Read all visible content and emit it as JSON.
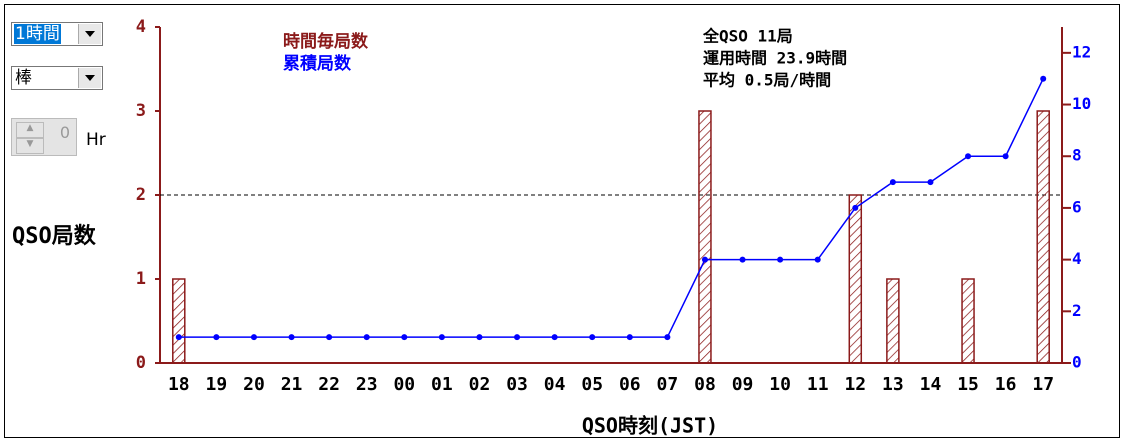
{
  "controls": {
    "interval": "1時間",
    "style": "棒",
    "offset": "0",
    "offset_unit": "Hr"
  },
  "chart_data": {
    "type": "bar-line",
    "ylabel": "QSO局数",
    "xlabel": "QSO時刻(JST)",
    "annotations": [
      "全QSO 11局",
      "運用時間 23.9時間",
      "平均 0.5局/時間"
    ],
    "categories": [
      "18",
      "19",
      "20",
      "21",
      "22",
      "23",
      "00",
      "01",
      "02",
      "03",
      "04",
      "05",
      "06",
      "07",
      "08",
      "09",
      "10",
      "11",
      "12",
      "13",
      "14",
      "15",
      "16",
      "17"
    ],
    "series": [
      {
        "name": "時間毎局数",
        "color": "#8b1a1a",
        "values": [
          1,
          0,
          0,
          0,
          0,
          0,
          0,
          0,
          0,
          0,
          0,
          0,
          0,
          0,
          3,
          0,
          0,
          0,
          2,
          1,
          0,
          1,
          0,
          3
        ]
      },
      {
        "name": "累積局数",
        "color": "#0000ff",
        "axis": "y2",
        "values": [
          1,
          1,
          1,
          1,
          1,
          1,
          1,
          1,
          1,
          1,
          1,
          1,
          1,
          1,
          4,
          4,
          4,
          4,
          6,
          7,
          7,
          8,
          8,
          11
        ]
      }
    ],
    "ylim": [
      0,
      4
    ],
    "yticks": [
      0,
      1,
      2,
      3,
      4
    ],
    "y2lim": [
      0,
      13
    ],
    "y2ticks": [
      0,
      2,
      4,
      6,
      8,
      10,
      12
    ],
    "reference_line": 2
  }
}
